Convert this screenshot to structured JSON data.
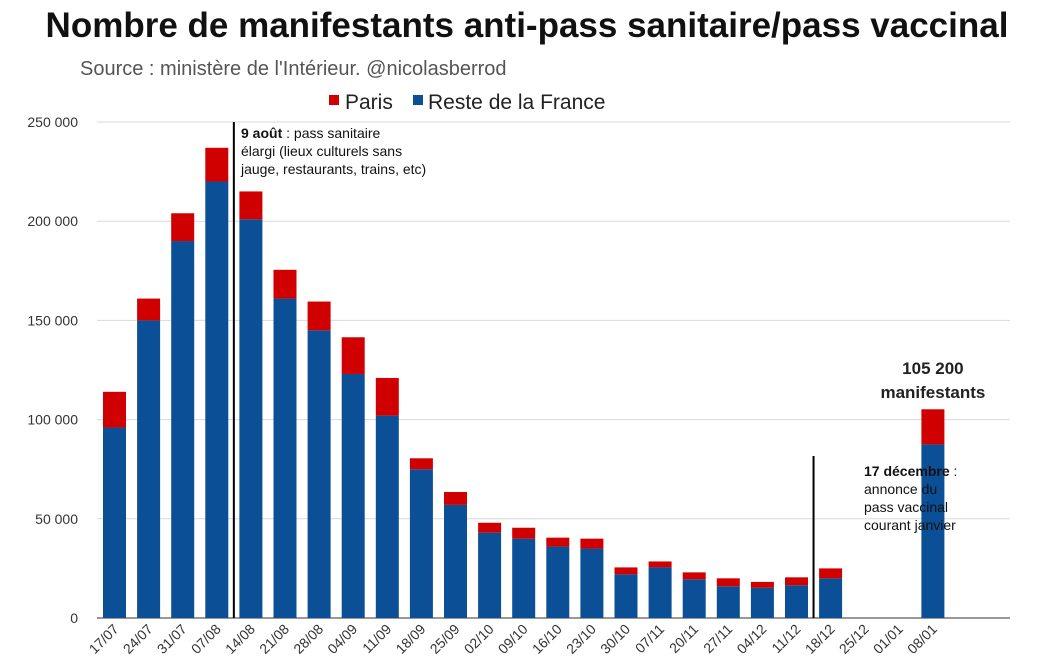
{
  "chart_data": {
    "type": "bar",
    "stacked": true,
    "title": "Nombre de manifestants anti-pass sanitaire/pass vaccinal",
    "subtitle": "Source : ministère de l'Intérieur. @nicolasberrod",
    "categories": [
      "17/07",
      "24/07",
      "31/07",
      "07/08",
      "14/08",
      "21/08",
      "28/08",
      "04/09",
      "11/09",
      "18/09",
      "25/09",
      "02/10",
      "09/10",
      "16/10",
      "23/10",
      "30/10",
      "07/11",
      "20/11",
      "27/11",
      "04/12",
      "11/12",
      "18/12",
      "25/12",
      "01/01",
      "08/01"
    ],
    "series": [
      {
        "name": "Reste de la France",
        "color": "#0b4f96",
        "values": [
          96000,
          150000,
          190000,
          220000,
          201000,
          161000,
          145000,
          123000,
          102000,
          75000,
          57000,
          43000,
          40000,
          36000,
          35000,
          22000,
          25500,
          19500,
          16000,
          15200,
          16500,
          20000,
          0,
          0,
          87500
        ]
      },
      {
        "name": "Paris",
        "color": "#d10000",
        "values": [
          18000,
          11000,
          14000,
          17000,
          14000,
          14500,
          14500,
          18500,
          19000,
          5500,
          6500,
          5000,
          5500,
          4500,
          5000,
          3500,
          3000,
          3500,
          4000,
          3000,
          4000,
          5000,
          0,
          0,
          17700
        ]
      }
    ],
    "legend": [
      "Paris",
      "Reste de la France"
    ],
    "ylim": [
      0,
      250000
    ],
    "yticks": [
      "0",
      "50 000",
      "100 000",
      "150 000",
      "200 000",
      "250 000"
    ],
    "ytick_values": [
      0,
      50000,
      100000,
      150000,
      200000,
      250000
    ],
    "grid": true,
    "legend_position": "top-center",
    "annotations": [
      {
        "between": [
          "07/08",
          "14/08"
        ],
        "bold": "9 août",
        "rest_first_line": " : pass sanitaire",
        "lines": [
          "élargi (lieux culturels sans",
          "jauge, restaurants, trains, etc)"
        ]
      },
      {
        "between": [
          "11/12",
          "18/12"
        ],
        "bold": "17 décembre",
        "rest_first_line": " :",
        "lines": [
          "annonce du",
          "pass vaccinal",
          "courant janvier"
        ]
      }
    ],
    "callout": {
      "category": "08/01",
      "lines": [
        "105 200",
        "manifestants"
      ]
    }
  }
}
